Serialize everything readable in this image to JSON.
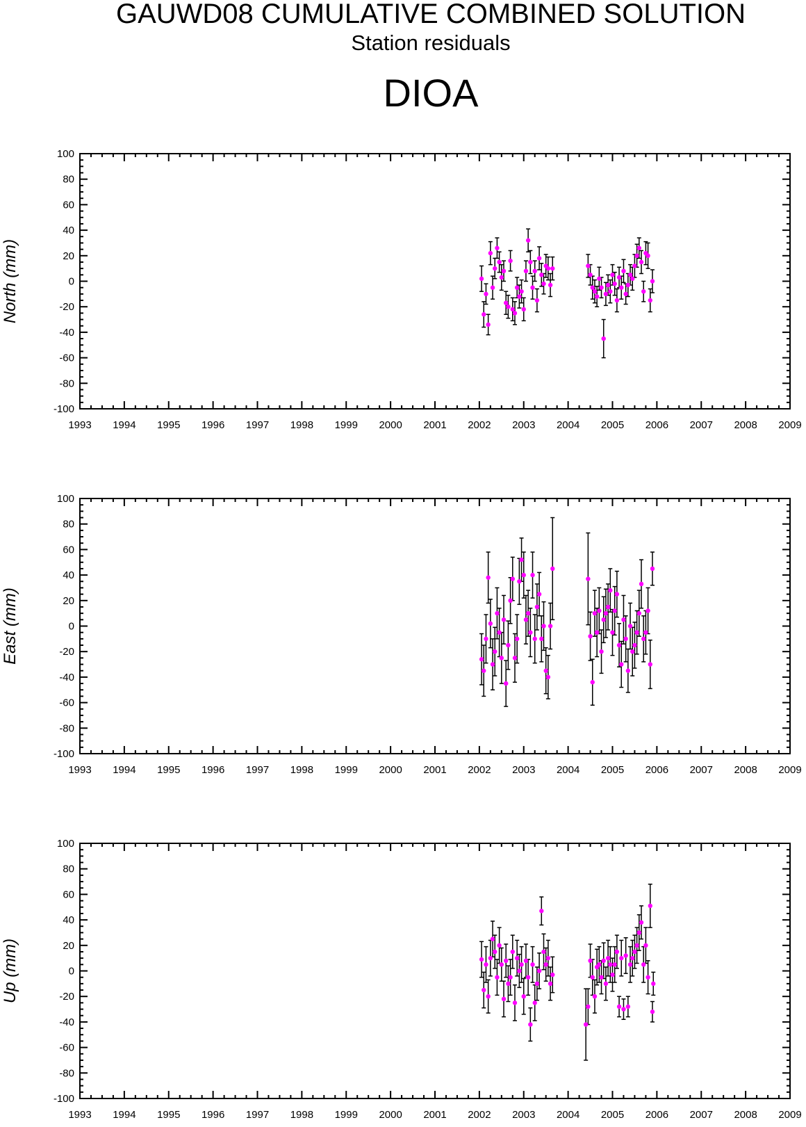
{
  "header": {
    "title": "GAUWD08 CUMULATIVE COMBINED SOLUTION",
    "subtitle": "Station residuals",
    "station": "DIOA"
  },
  "colors": {
    "marker": "#ff00ff",
    "errorbar": "#000000",
    "axis": "#000000"
  },
  "chart_data": [
    {
      "type": "scatter",
      "ylabel": "North (mm)",
      "xlim": [
        1993,
        2009
      ],
      "ylim": [
        -100,
        100
      ],
      "x_ticks": [
        "1993",
        "1994",
        "1995",
        "1996",
        "1997",
        "1998",
        "1999",
        "2000",
        "2001",
        "2002",
        "2003",
        "2004",
        "2005",
        "2006",
        "2007",
        "2008",
        "2009"
      ],
      "y_ticks": [
        "-100",
        "-80",
        "-60",
        "-40",
        "-20",
        "0",
        "20",
        "40",
        "60",
        "80",
        "100"
      ],
      "error_bars": true,
      "x": [
        2002.05,
        2002.1,
        2002.15,
        2002.2,
        2002.25,
        2002.3,
        2002.35,
        2002.4,
        2002.45,
        2002.5,
        2002.55,
        2002.6,
        2002.65,
        2002.7,
        2002.75,
        2002.8,
        2002.85,
        2002.9,
        2002.95,
        2003.0,
        2003.05,
        2003.1,
        2003.15,
        2003.2,
        2003.25,
        2003.3,
        2003.35,
        2003.4,
        2003.45,
        2003.5,
        2003.55,
        2003.6,
        2003.65,
        2004.45,
        2004.5,
        2004.55,
        2004.6,
        2004.65,
        2004.7,
        2004.75,
        2004.8,
        2004.85,
        2004.9,
        2004.95,
        2005.0,
        2005.05,
        2005.1,
        2005.15,
        2005.2,
        2005.25,
        2005.3,
        2005.35,
        2005.4,
        2005.45,
        2005.5,
        2005.55,
        2005.6,
        2005.65,
        2005.7,
        2005.75,
        2005.8,
        2005.85,
        2005.9
      ],
      "y": [
        2,
        -26,
        -10,
        -34,
        22,
        -5,
        10,
        26,
        15,
        3,
        8,
        -17,
        -20,
        16,
        -22,
        -25,
        -5,
        -12,
        -8,
        -22,
        8,
        32,
        15,
        -5,
        8,
        -15,
        18,
        5,
        -2,
        12,
        10,
        -3,
        10,
        12,
        5,
        -5,
        -8,
        -12,
        2,
        -5,
        -45,
        -10,
        -3,
        -8,
        5,
        -2,
        -15,
        3,
        -5,
        8,
        -10,
        -3,
        5,
        2,
        12,
        20,
        26,
        15,
        -8,
        22,
        20,
        -15,
        0
      ],
      "err": [
        10,
        10,
        8,
        8,
        9,
        9,
        8,
        8,
        8,
        10,
        8,
        9,
        9,
        8,
        9,
        9,
        8,
        9,
        9,
        9,
        8,
        9,
        9,
        9,
        8,
        9,
        9,
        9,
        8,
        9,
        9,
        9,
        9,
        9,
        8,
        9,
        9,
        8,
        9,
        8,
        15,
        9,
        8,
        9,
        8,
        9,
        9,
        8,
        9,
        9,
        8,
        9,
        8,
        9,
        9,
        9,
        8,
        9,
        8,
        9,
        10,
        9,
        9
      ]
    },
    {
      "type": "scatter",
      "ylabel": "East (mm)",
      "xlim": [
        1993,
        2009
      ],
      "ylim": [
        -100,
        100
      ],
      "x_ticks": [
        "1993",
        "1994",
        "1995",
        "1996",
        "1997",
        "1998",
        "1999",
        "2000",
        "2001",
        "2002",
        "2003",
        "2004",
        "2005",
        "2006",
        "2007",
        "2008",
        "2009"
      ],
      "y_ticks": [
        "-100",
        "-80",
        "-60",
        "-40",
        "-20",
        "0",
        "20",
        "40",
        "60",
        "80",
        "100"
      ],
      "error_bars": true,
      "x": [
        2002.05,
        2002.1,
        2002.15,
        2002.2,
        2002.25,
        2002.3,
        2002.35,
        2002.4,
        2002.45,
        2002.5,
        2002.55,
        2002.6,
        2002.65,
        2002.7,
        2002.75,
        2002.8,
        2002.85,
        2002.9,
        2002.95,
        2003.0,
        2003.05,
        2003.1,
        2003.15,
        2003.2,
        2003.25,
        2003.3,
        2003.35,
        2003.4,
        2003.45,
        2003.5,
        2003.55,
        2003.6,
        2003.65,
        2004.45,
        2004.5,
        2004.55,
        2004.6,
        2004.65,
        2004.7,
        2004.75,
        2004.8,
        2004.85,
        2004.9,
        2004.95,
        2005.0,
        2005.05,
        2005.1,
        2005.15,
        2005.2,
        2005.25,
        2005.3,
        2005.35,
        2005.4,
        2005.45,
        2005.5,
        2005.55,
        2005.6,
        2005.65,
        2005.7,
        2005.75,
        2005.8,
        2005.85,
        2005.9
      ],
      "y": [
        -26,
        -35,
        -10,
        38,
        2,
        -30,
        -20,
        10,
        -5,
        -25,
        5,
        -45,
        -15,
        20,
        37,
        -25,
        -10,
        35,
        52,
        40,
        5,
        10,
        -5,
        40,
        -10,
        15,
        25,
        -10,
        0,
        -35,
        -40,
        0,
        45,
        37,
        -8,
        -44,
        10,
        -5,
        12,
        -20,
        5,
        10,
        15,
        28,
        -5,
        12,
        25,
        -15,
        -30,
        5,
        -10,
        -35,
        0,
        -20,
        -15,
        -5,
        10,
        33,
        -10,
        -5,
        12,
        -30,
        45
      ],
      "err": [
        20,
        20,
        19,
        20,
        19,
        20,
        19,
        20,
        19,
        20,
        19,
        18,
        19,
        18,
        17,
        19,
        19,
        18,
        17,
        18,
        19,
        18,
        19,
        18,
        19,
        18,
        17,
        18,
        19,
        18,
        17,
        18,
        40,
        36,
        19,
        18,
        18,
        19,
        18,
        17,
        18,
        19,
        18,
        17,
        18,
        19,
        18,
        17,
        18,
        19,
        18,
        17,
        18,
        19,
        18,
        17,
        18,
        19,
        18,
        17,
        18,
        19,
        13
      ]
    },
    {
      "type": "scatter",
      "ylabel": "Up (mm)",
      "xlim": [
        1993,
        2009
      ],
      "ylim": [
        -100,
        100
      ],
      "x_ticks": [
        "1993",
        "1994",
        "1995",
        "1996",
        "1997",
        "1998",
        "1999",
        "2000",
        "2001",
        "2002",
        "2003",
        "2004",
        "2005",
        "2006",
        "2007",
        "2008",
        "2009"
      ],
      "y_ticks": [
        "-100",
        "-80",
        "-60",
        "-40",
        "-20",
        "0",
        "20",
        "40",
        "60",
        "80",
        "100"
      ],
      "error_bars": true,
      "x": [
        2002.05,
        2002.1,
        2002.15,
        2002.2,
        2002.25,
        2002.3,
        2002.35,
        2002.4,
        2002.45,
        2002.5,
        2002.55,
        2002.6,
        2002.65,
        2002.7,
        2002.75,
        2002.8,
        2002.85,
        2002.9,
        2002.95,
        2003.0,
        2003.05,
        2003.1,
        2003.15,
        2003.2,
        2003.25,
        2003.3,
        2003.35,
        2003.4,
        2003.45,
        2003.5,
        2003.55,
        2003.6,
        2003.65,
        2004.4,
        2004.45,
        2004.5,
        2004.55,
        2004.6,
        2004.65,
        2004.7,
        2004.75,
        2004.8,
        2004.85,
        2004.9,
        2004.95,
        2005.0,
        2005.05,
        2005.1,
        2005.15,
        2005.2,
        2005.25,
        2005.3,
        2005.35,
        2005.4,
        2005.45,
        2005.5,
        2005.55,
        2005.6,
        2005.65,
        2005.7,
        2005.75,
        2005.8,
        2005.85,
        2005.9,
        2005.92
      ],
      "y": [
        9,
        -15,
        5,
        -20,
        10,
        25,
        15,
        -5,
        20,
        5,
        -22,
        8,
        -10,
        -5,
        15,
        -25,
        10,
        0,
        5,
        -20,
        8,
        -5,
        -42,
        5,
        -25,
        -10,
        0,
        47,
        15,
        5,
        10,
        -10,
        -3,
        -42,
        -28,
        8,
        -5,
        -20,
        3,
        5,
        -5,
        8,
        -10,
        10,
        5,
        -3,
        5,
        15,
        -28,
        10,
        -30,
        12,
        -28,
        5,
        10,
        15,
        20,
        30,
        38,
        5,
        20,
        -5,
        51,
        -32,
        -10
      ],
      "err": [
        14,
        14,
        14,
        13,
        14,
        14,
        13,
        14,
        14,
        13,
        14,
        13,
        14,
        14,
        13,
        14,
        14,
        13,
        14,
        14,
        13,
        14,
        13,
        14,
        14,
        13,
        14,
        11,
        14,
        13,
        14,
        13,
        14,
        28,
        14,
        13,
        14,
        13,
        14,
        14,
        13,
        14,
        13,
        14,
        14,
        13,
        14,
        13,
        8,
        14,
        8,
        14,
        8,
        14,
        14,
        13,
        14,
        14,
        13,
        14,
        14,
        13,
        17,
        8,
        9
      ]
    }
  ]
}
